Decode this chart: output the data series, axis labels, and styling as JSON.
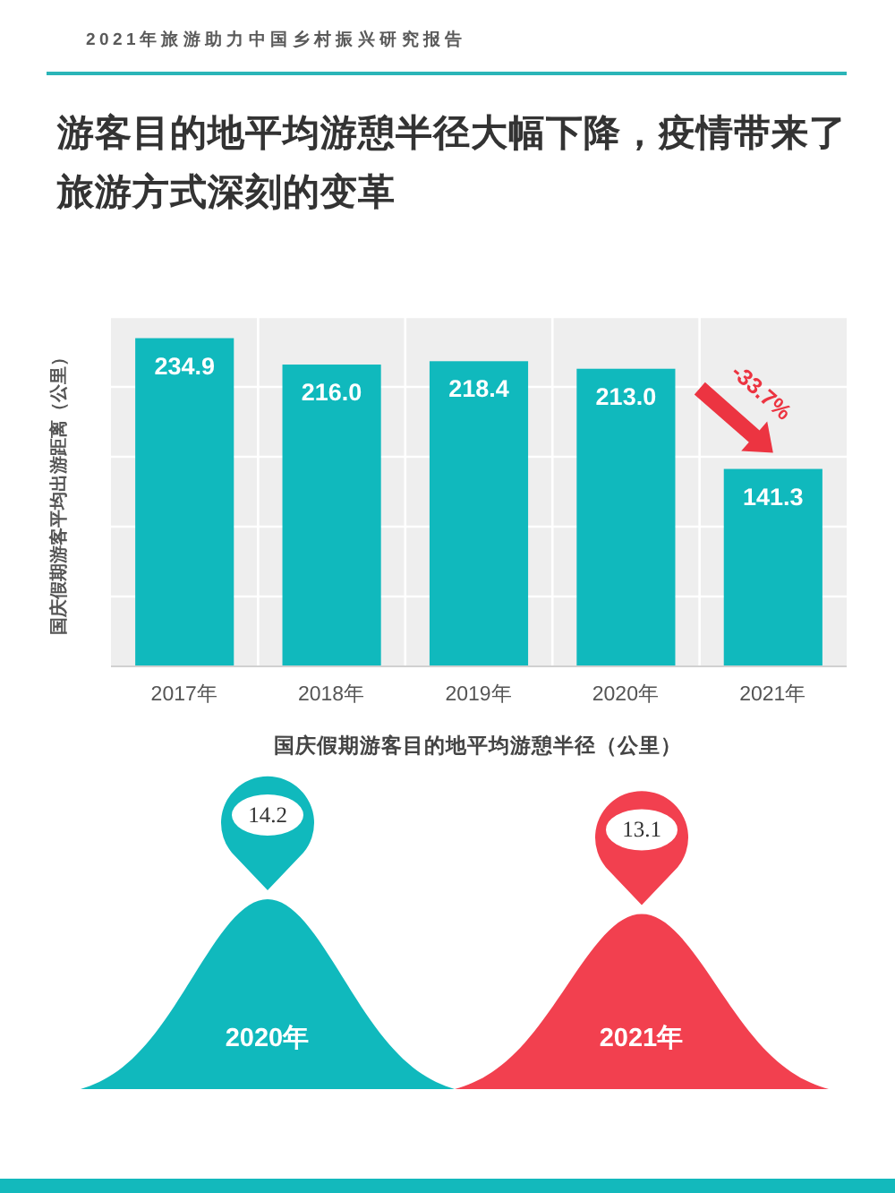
{
  "chart_data": [
    {
      "type": "bar",
      "title": "游客目的地平均游憩半径大幅下降，疫情带来了旅游方式深刻的变革",
      "annotations": [
        "2021年旅游助力中国乡村振兴研究报告",
        {
          "text": "-33.7%",
          "x": "2021年",
          "y": 141.3
        }
      ],
      "categories": [
        "2017年",
        "2018年",
        "2019年",
        "2020年",
        "2021年"
      ],
      "values": [
        234.9,
        216.0,
        218.4,
        213.0,
        141.3
      ],
      "value_labels": [
        "234.9",
        "216.0",
        "218.4",
        "213.0",
        "141.3"
      ],
      "color": "#10b9bd",
      "ylabel": "国庆假期游客平均出游距离（公里）",
      "ylim": [
        0,
        250
      ],
      "yticks": [
        {
          "value": 50,
          "label": null
        },
        {
          "value": 100,
          "label": null
        },
        {
          "value": 150,
          "label": null
        },
        {
          "value": 200,
          "label": null
        },
        {
          "value": 250,
          "label": null
        }
      ],
      "grid": true,
      "tick_labels": "x"
    },
    {
      "type": "other",
      "title": "国庆假期游客目的地平均游憩半径（公里）",
      "categories": [
        "2020年",
        "2021年"
      ],
      "values": [
        14.2,
        13.1
      ],
      "colors": [
        "#10b9bd",
        "#f2404f"
      ],
      "data_labels": true
    }
  ]
}
